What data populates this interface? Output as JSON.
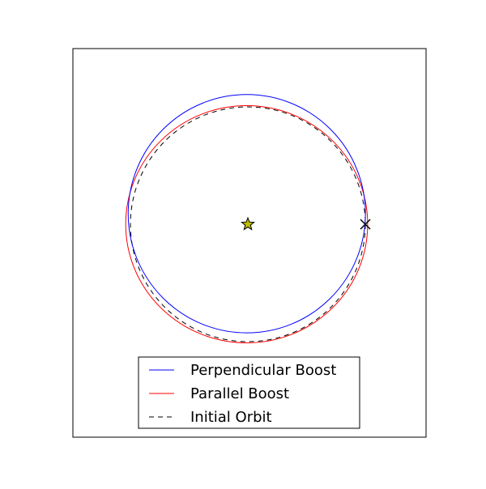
{
  "chart_data": {
    "type": "line",
    "title": "",
    "xlabel": "",
    "ylabel": "",
    "axes_ticks": "hidden",
    "grid": false,
    "legend_position": "lower center",
    "star": {
      "x": 0,
      "y": 0,
      "color": "#bfbf00",
      "marker": "star"
    },
    "boost_point": {
      "x": 1.0,
      "y": 0,
      "color": "#000000",
      "marker": "x"
    },
    "series": [
      {
        "name": "Perpendicular Boost",
        "color": "#0000ff",
        "style": "solid",
        "ellipse": {
          "cx": -0.009,
          "cy": 0.09,
          "a": 1.01,
          "b": 1.015
        }
      },
      {
        "name": "Parallel Boost",
        "color": "#ff0000",
        "style": "solid",
        "ellipse": {
          "cx": -0.01,
          "cy": 0.0,
          "a": 1.03,
          "b": 1.01
        }
      },
      {
        "name": "Initial Orbit",
        "color": "#000000",
        "style": "dashed",
        "ellipse": {
          "cx": 0,
          "cy": 0,
          "a": 1.0,
          "b": 1.0
        }
      }
    ]
  }
}
